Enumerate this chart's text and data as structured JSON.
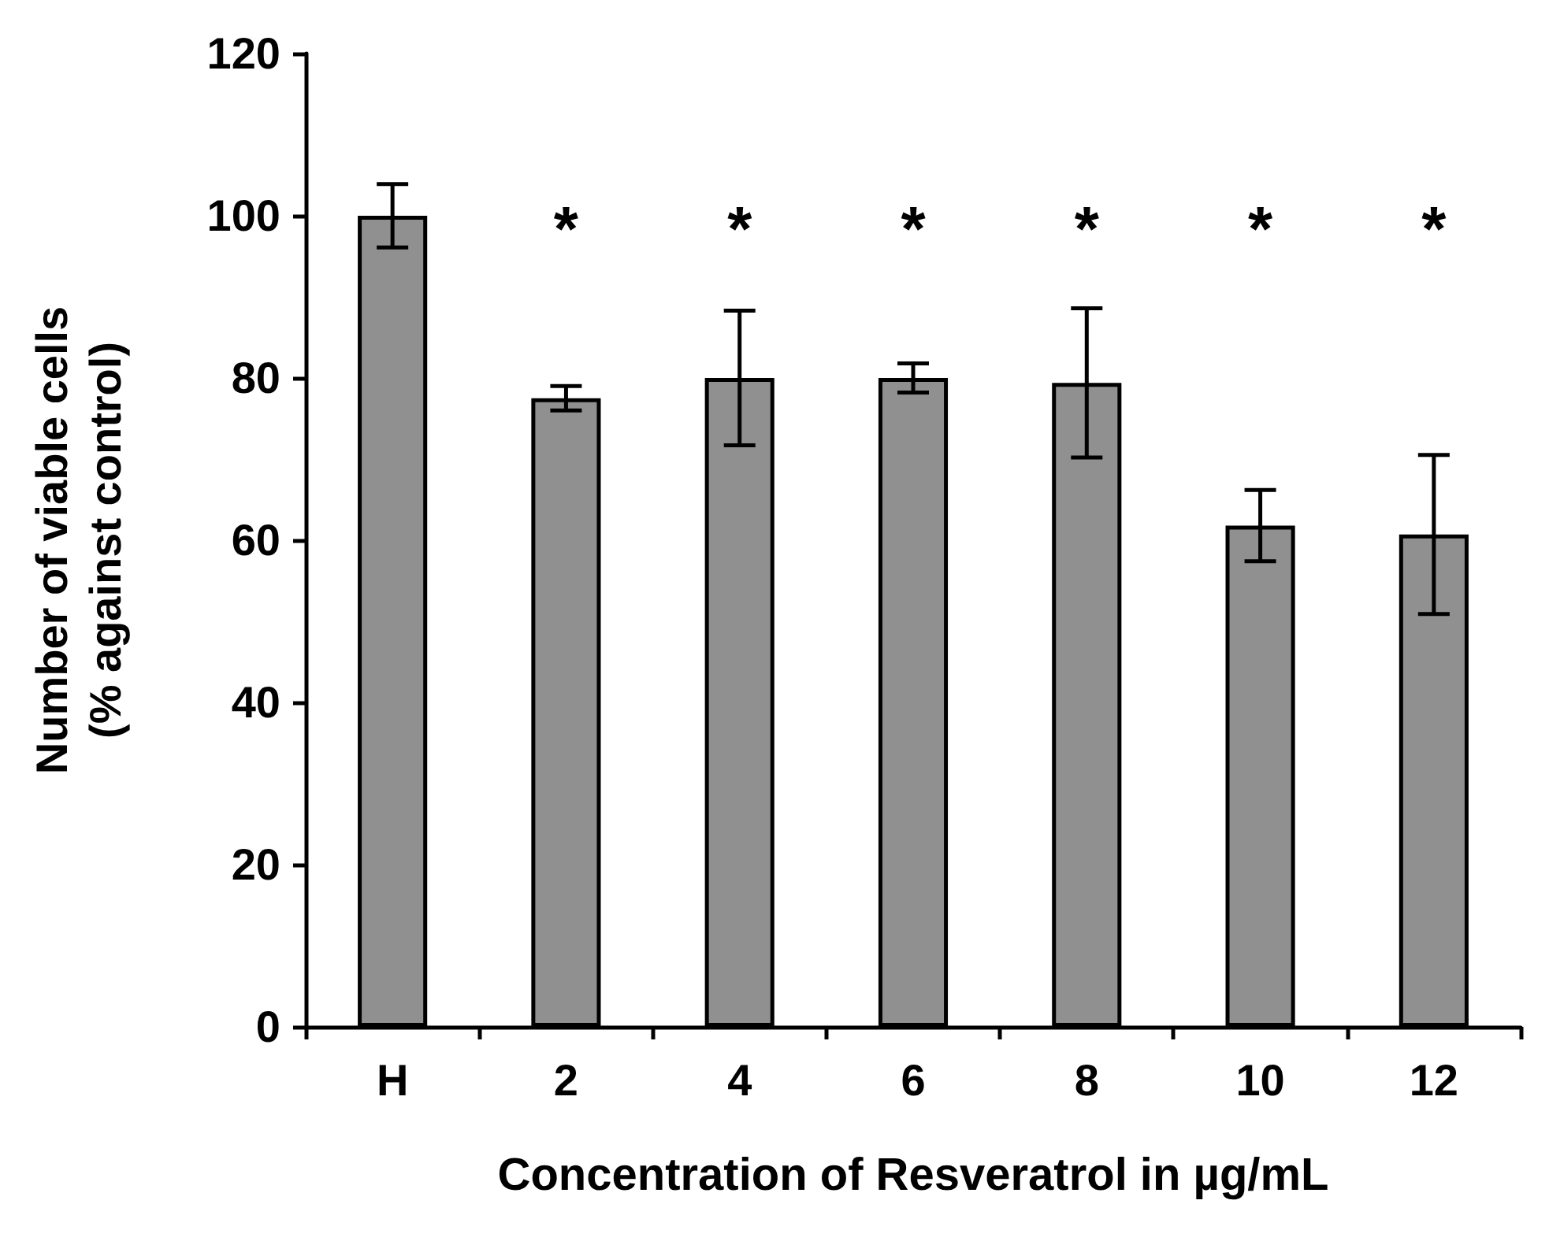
{
  "chart_data": {
    "type": "bar",
    "xlabel": "Concentration of Resveratrol in µg/mL",
    "ylabel": "Number of viable cells\n(% against control)",
    "categories": [
      "H",
      "2",
      "4",
      "6",
      "8",
      "10",
      "12"
    ],
    "values": [
      100,
      77.5,
      80,
      80,
      79.4,
      61.8,
      60.7
    ],
    "errors": [
      3.9,
      1.5,
      8.3,
      1.8,
      9.2,
      4.4,
      9.8
    ],
    "color": "#909090",
    "ylim": [
      0,
      120
    ],
    "yticks": [
      0,
      20,
      40,
      60,
      80,
      100,
      120
    ],
    "grid": false,
    "annotations": [
      "*",
      "*",
      "*",
      "*",
      "*",
      "*"
    ]
  }
}
